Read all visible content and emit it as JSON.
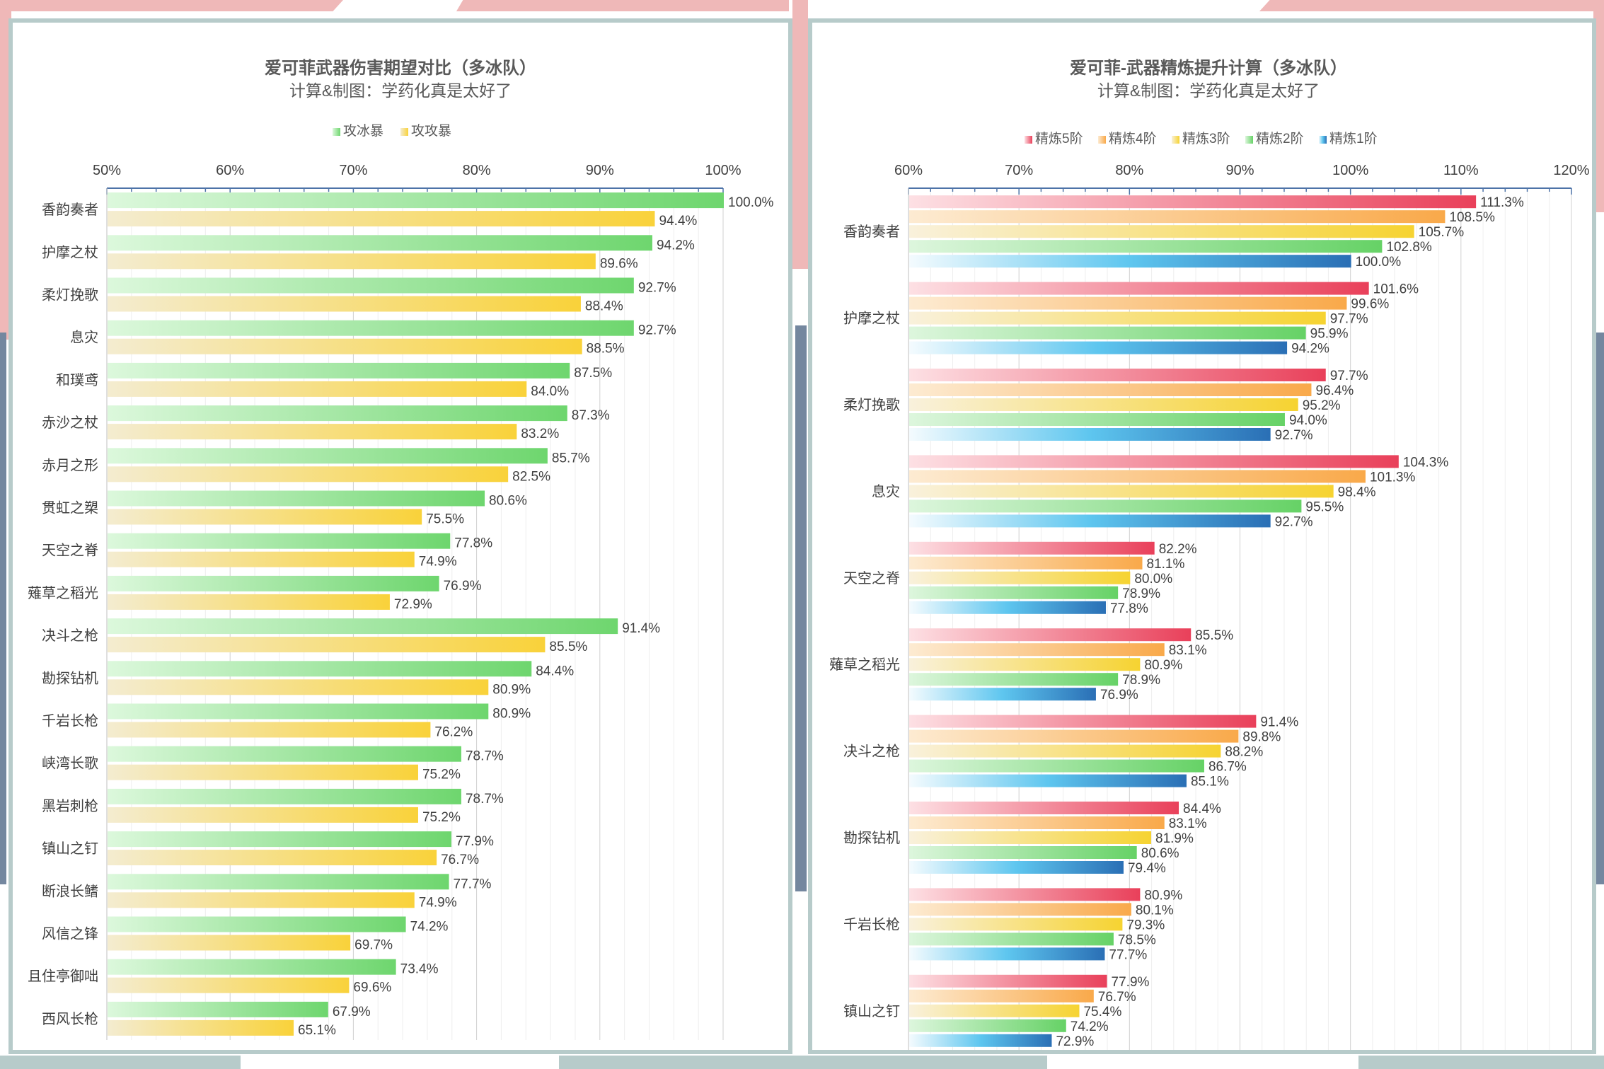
{
  "colors": {
    "frame": "#b7cbca",
    "deco_pink": "#efb8b8",
    "deco_blue": "#74879f",
    "axis": "#4d73a8"
  },
  "chart_data": [
    {
      "type": "bar",
      "orientation": "horizontal",
      "title": "爱可菲武器伤害期望对比（多冰队）",
      "subtitle": "计算&制图：学药化真是太好了",
      "xlim": [
        50,
        100
      ],
      "ticks": [
        "50%",
        "60%",
        "70%",
        "80%",
        "90%",
        "100%"
      ],
      "grid": true,
      "legend_position": "top",
      "categories": [
        "香韵奏者",
        "护摩之杖",
        "柔灯挽歌",
        "息灾",
        "和璞鸢",
        "赤沙之杖",
        "赤月之形",
        "贯虹之槊",
        "天空之脊",
        "薙草之稻光",
        "决斗之枪",
        "勘探钻机",
        "千岩长枪",
        "峡湾长歌",
        "黑岩刺枪",
        "镇山之钉",
        "断浪长鳍",
        "风信之锋",
        "且住亭御咄",
        "西风长枪"
      ],
      "series": [
        {
          "name": "攻冰暴",
          "gradient": [
            "#dcf8dc",
            "#6ed66e"
          ],
          "values": [
            100.0,
            94.2,
            92.7,
            92.7,
            87.5,
            87.3,
            85.7,
            80.6,
            77.8,
            76.9,
            91.4,
            84.4,
            80.9,
            78.7,
            78.7,
            77.9,
            77.7,
            74.2,
            73.4,
            67.9
          ],
          "labels": [
            "100.0%",
            "94.2%",
            "92.7%",
            "92.7%",
            "87.5%",
            "87.3%",
            "85.7%",
            "80.6%",
            "77.8%",
            "76.9%",
            "91.4%",
            "84.4%",
            "80.9%",
            "78.7%",
            "78.7%",
            "77.9%",
            "77.7%",
            "74.2%",
            "73.4%",
            "67.9%"
          ]
        },
        {
          "name": "攻攻暴",
          "gradient": [
            "#f4ecd0",
            "#f9d23a"
          ],
          "values": [
            94.4,
            89.6,
            88.4,
            88.5,
            84.0,
            83.2,
            82.5,
            75.5,
            74.9,
            72.9,
            85.5,
            80.9,
            76.2,
            75.2,
            75.2,
            76.7,
            74.9,
            69.7,
            69.6,
            65.1
          ],
          "labels": [
            "94.4%",
            "89.6%",
            "88.4%",
            "88.5%",
            "84.0%",
            "83.2%",
            "82.5%",
            "75.5%",
            "74.9%",
            "72.9%",
            "85.5%",
            "80.9%",
            "76.2%",
            "75.2%",
            "75.2%",
            "76.7%",
            "74.9%",
            "69.7%",
            "69.6%",
            "65.1%"
          ]
        }
      ]
    },
    {
      "type": "bar",
      "orientation": "horizontal",
      "title": "爱可菲-武器精炼提升计算（多冰队）",
      "subtitle": "计算&制图：学药化真是太好了",
      "xlim": [
        60,
        120
      ],
      "ticks": [
        "60%",
        "70%",
        "80%",
        "90%",
        "100%",
        "110%",
        "120%"
      ],
      "grid": true,
      "legend_position": "top",
      "categories": [
        "香韵奏者",
        "护摩之杖",
        "柔灯挽歌",
        "息灾",
        "天空之脊",
        "薙草之稻光",
        "决斗之枪",
        "勘探钻机",
        "千岩长枪",
        "镇山之钉"
      ],
      "series": [
        {
          "name": "精炼5阶",
          "gradient": [
            "#fde0e4",
            "#e9405a"
          ],
          "values": [
            111.3,
            101.6,
            97.7,
            104.3,
            82.2,
            85.5,
            91.4,
            84.4,
            80.9,
            77.9
          ],
          "labels": [
            "111.3%",
            "101.6%",
            "97.7%",
            "104.3%",
            "82.2%",
            "85.5%",
            "91.4%",
            "84.4%",
            "80.9%",
            "77.9%"
          ]
        },
        {
          "name": "精炼4阶",
          "gradient": [
            "#fdebd2",
            "#f9a94a"
          ],
          "values": [
            108.5,
            99.6,
            96.4,
            101.3,
            81.1,
            83.1,
            89.8,
            83.1,
            80.1,
            76.7
          ],
          "labels": [
            "108.5%",
            "99.6%",
            "96.4%",
            "101.3%",
            "81.1%",
            "83.1%",
            "89.8%",
            "83.1%",
            "80.1%",
            "76.7%"
          ]
        },
        {
          "name": "精炼3阶",
          "gradient": [
            "#f9f1dc",
            "#f6d331"
          ],
          "values": [
            105.7,
            97.7,
            95.2,
            98.4,
            80.0,
            80.9,
            88.2,
            81.9,
            79.3,
            75.4
          ],
          "labels": [
            "105.7%",
            "97.7%",
            "95.2%",
            "98.4%",
            "80.0%",
            "80.9%",
            "88.2%",
            "81.9%",
            "79.3%",
            "75.4%"
          ]
        },
        {
          "name": "精炼2阶",
          "gradient": [
            "#ddf6dd",
            "#66d266"
          ],
          "values": [
            102.8,
            95.9,
            94.0,
            95.5,
            78.9,
            78.9,
            86.7,
            80.6,
            78.5,
            74.2
          ],
          "labels": [
            "102.8%",
            "95.9%",
            "94.0%",
            "95.5%",
            "78.9%",
            "78.9%",
            "86.7%",
            "80.6%",
            "78.5%",
            "74.2%"
          ]
        },
        {
          "name": "精炼1阶",
          "gradient": [
            "#f4fbfe",
            "#5ec6ef",
            "#2a6fb5"
          ],
          "values": [
            100.0,
            94.2,
            92.7,
            92.7,
            77.8,
            76.9,
            85.1,
            79.4,
            77.7,
            72.9
          ],
          "labels": [
            "100.0%",
            "94.2%",
            "92.7%",
            "92.7%",
            "77.8%",
            "76.9%",
            "85.1%",
            "79.4%",
            "77.7%",
            "72.9%"
          ]
        }
      ]
    }
  ]
}
